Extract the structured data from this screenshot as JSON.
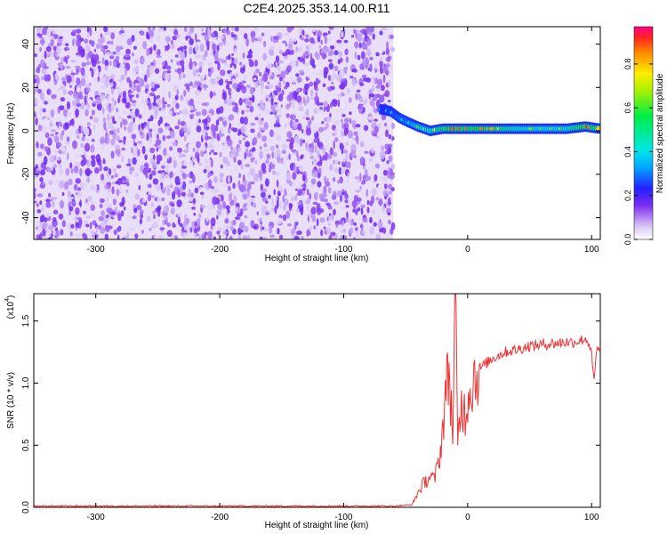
{
  "title": "C2E4.2025.353.14.00.R11",
  "chart_data": [
    {
      "type": "heatmap",
      "xlabel": "Height of straight line (km)",
      "ylabel": "Frequency (Hz)",
      "xlim": [
        -350,
        107
      ],
      "ylim": [
        -50,
        48
      ],
      "x_ticks": [
        -300,
        -200,
        -100,
        0,
        100
      ],
      "y_ticks": [
        -40,
        -20,
        0,
        20,
        40
      ],
      "noise_region_x": [
        -350,
        -60
      ],
      "signal_track": [
        {
          "x": -70,
          "y": 10,
          "amp": 0.35
        },
        {
          "x": -62,
          "y": 9,
          "amp": 0.4
        },
        {
          "x": -55,
          "y": 6,
          "amp": 0.45
        },
        {
          "x": -48,
          "y": 4,
          "amp": 0.5
        },
        {
          "x": -40,
          "y": 2,
          "amp": 0.6
        },
        {
          "x": -30,
          "y": 0,
          "amp": 0.7
        },
        {
          "x": -20,
          "y": 1,
          "amp": 0.85
        },
        {
          "x": -10,
          "y": 1,
          "amp": 0.95
        },
        {
          "x": 0,
          "y": 1,
          "amp": 0.9
        },
        {
          "x": 10,
          "y": 1,
          "amp": 0.9
        },
        {
          "x": 20,
          "y": 1,
          "amp": 0.85
        },
        {
          "x": 40,
          "y": 1,
          "amp": 0.7
        },
        {
          "x": 60,
          "y": 1,
          "amp": 0.65
        },
        {
          "x": 80,
          "y": 1,
          "amp": 0.7
        },
        {
          "x": 95,
          "y": 2,
          "amp": 0.95
        },
        {
          "x": 107,
          "y": 1,
          "amp": 0.8
        }
      ]
    },
    {
      "type": "colorbar",
      "label": "Normalized spectral amplitude",
      "range": [
        0.0,
        0.97
      ],
      "ticks": [
        "0.0",
        "0.2",
        "0.4",
        "0.6",
        "0.8"
      ],
      "tick_values": [
        0.0,
        0.2,
        0.4,
        0.6,
        0.8
      ]
    },
    {
      "type": "line",
      "xlabel": "Height of straight line (km)",
      "ylabel": "SNR (10 * v/v)",
      "y_multiplier": "(x10",
      "y_multiplier_exp": "4",
      "xlim": [
        -350,
        107
      ],
      "ylim": [
        0,
        1.72
      ],
      "x_ticks": [
        -300,
        -200,
        -100,
        0,
        100
      ],
      "y_ticks": [
        "0.0",
        "0.5",
        "1.0",
        "1.5"
      ],
      "y_tick_values": [
        0,
        0.5,
        1.0,
        1.5
      ],
      "line_color": "#ee3333",
      "series": [
        {
          "x": [
            -350,
            -300,
            -200,
            -100,
            -60,
            -45,
            -40,
            -35,
            -30,
            -27,
            -25,
            -22,
            -20,
            -18,
            -15,
            -12,
            -10,
            -8,
            -5,
            -2,
            0,
            5,
            10,
            20,
            30,
            40,
            50,
            60,
            70,
            80,
            85,
            90,
            95,
            98,
            100,
            102,
            104,
            107
          ],
          "y": [
            0.01,
            0.01,
            0.01,
            0.01,
            0.01,
            0.02,
            0.12,
            0.2,
            0.25,
            0.22,
            0.3,
            0.45,
            0.65,
            0.9,
            1.1,
            0.6,
            1.7,
            0.5,
            0.85,
            0.75,
            0.9,
            1.05,
            1.12,
            1.2,
            1.25,
            1.27,
            1.3,
            1.31,
            1.32,
            1.33,
            1.33,
            1.34,
            1.36,
            1.32,
            1.22,
            1.0,
            1.27,
            1.25
          ]
        }
      ]
    }
  ]
}
